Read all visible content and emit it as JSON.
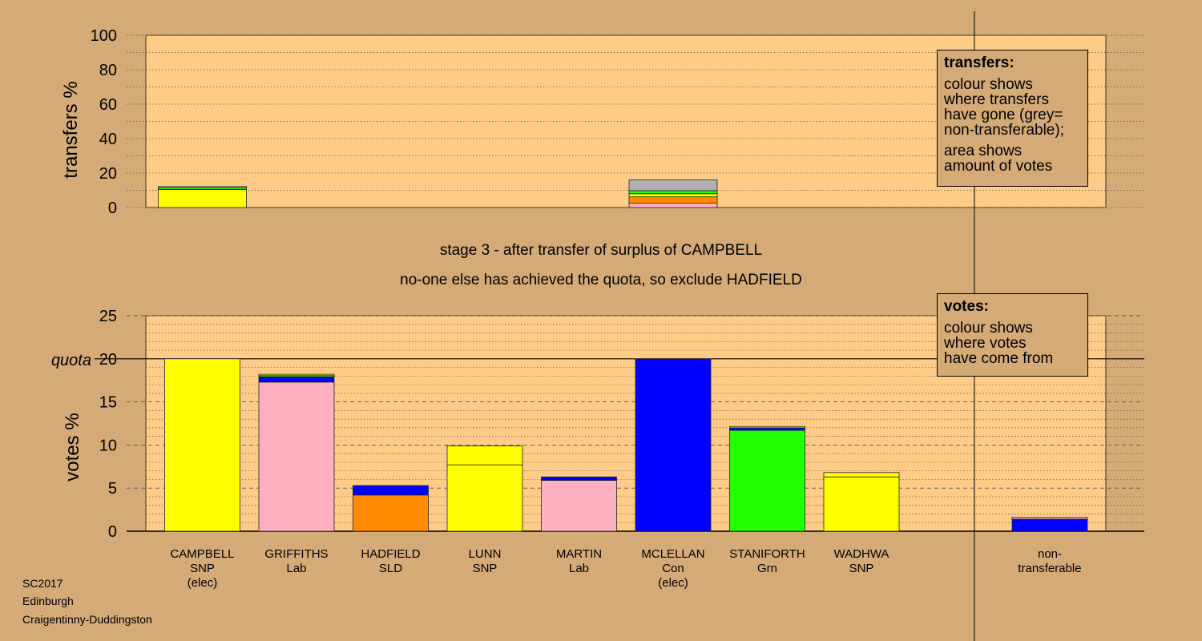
{
  "chart_data": [
    {
      "type": "bar",
      "stacked": true,
      "ylabel": "transfers %",
      "ylim": [
        0,
        100
      ],
      "yticks": [
        "0",
        "20",
        "40",
        "60",
        "80",
        "100"
      ],
      "grid": true,
      "bars": [
        {
          "candidate": "CAMPBELL",
          "segments": [
            {
              "color": "#ffff00",
              "value": 10.5
            },
            {
              "color": "#22ff00",
              "value": 1.0
            },
            {
              "color": "#ffb0c0",
              "value": 0.7
            }
          ]
        },
        {
          "candidate": "MCLELLAN",
          "segments": [
            {
              "color": "#ffb0c0",
              "value": 2.5
            },
            {
              "color": "#ff8c00",
              "value": 3.7
            },
            {
              "color": "#ffff00",
              "value": 1.8
            },
            {
              "color": "#22ff00",
              "value": 1.8
            },
            {
              "color": "#b0b0b0",
              "value": 6.2
            }
          ]
        }
      ]
    },
    {
      "type": "bar",
      "stacked": true,
      "ylabel": "votes %",
      "ylim": [
        0,
        25
      ],
      "yticks": [
        "0",
        "5",
        "10",
        "15",
        "20",
        "25"
      ],
      "quota_label": "quota",
      "quota": 20,
      "grid": true,
      "candidates": [
        {
          "name": "CAMPBELL",
          "party": "SNP",
          "note": "(elec)",
          "segments": [
            {
              "color": "#ffff00",
              "value": 20.0
            }
          ]
        },
        {
          "name": "GRIFFITHS",
          "party": "Lab",
          "note": "",
          "segments": [
            {
              "color": "#ffb0c0",
              "value": 17.3
            },
            {
              "color": "#0000ff",
              "value": 0.6
            },
            {
              "color": "#22ff00",
              "value": 0.15
            },
            {
              "color": "#ffff00",
              "value": 0.15
            }
          ]
        },
        {
          "name": "HADFIELD",
          "party": "SLD",
          "note": "",
          "segments": [
            {
              "color": "#ff8c00",
              "value": 4.2
            },
            {
              "color": "#0000ff",
              "value": 1.1
            }
          ]
        },
        {
          "name": "LUNN",
          "party": "SNP",
          "note": "",
          "segments": [
            {
              "color": "#ffff00",
              "value": 7.7
            },
            {
              "color": "#ffff00",
              "value": 2.2
            }
          ]
        },
        {
          "name": "MARTIN",
          "party": "Lab",
          "note": "",
          "segments": [
            {
              "color": "#ffb0c0",
              "value": 5.9
            },
            {
              "color": "#0000ff",
              "value": 0.4
            }
          ]
        },
        {
          "name": "MCLELLAN",
          "party": "Con",
          "note": "(elec)",
          "segments": [
            {
              "color": "#0000ff",
              "value": 20.0
            }
          ]
        },
        {
          "name": "STANIFORTH",
          "party": "Grn",
          "note": "",
          "segments": [
            {
              "color": "#22ff00",
              "value": 11.7
            },
            {
              "color": "#0000ff",
              "value": 0.3
            },
            {
              "color": "#ffff00",
              "value": 0.15
            }
          ]
        },
        {
          "name": "WADHWA",
          "party": "SNP",
          "note": "",
          "segments": [
            {
              "color": "#ffff00",
              "value": 6.3
            },
            {
              "color": "#ffff00",
              "value": 0.5
            }
          ]
        }
      ],
      "nontransferable": {
        "label1": "non-",
        "label2": "transferable",
        "segments": [
          {
            "color": "#0000ff",
            "value": 1.4
          },
          {
            "color": "#ffb0c0",
            "value": 0.2
          }
        ]
      }
    }
  ],
  "stage_line1": "stage 3 - after transfer of surplus of CAMPBELL",
  "stage_line2": "no-one else has achieved the quota, so exclude HADFIELD",
  "transfers_legend": {
    "title": "transfers:",
    "line1": "colour shows",
    "line2": "where transfers",
    "line3": "have gone (grey=",
    "line4": "non-transferable);",
    "line5": "area shows",
    "line6": "amount of votes"
  },
  "votes_legend": {
    "title": "votes:",
    "line1": "colour shows",
    "line2": "where votes",
    "line3": "have come from"
  },
  "footer": {
    "line1": "SC2017",
    "line2": "Edinburgh",
    "line3": "Craigentinny-Duddingston"
  },
  "colors": {
    "background": "#d4aa77",
    "plot_area": "#ffcc88"
  }
}
